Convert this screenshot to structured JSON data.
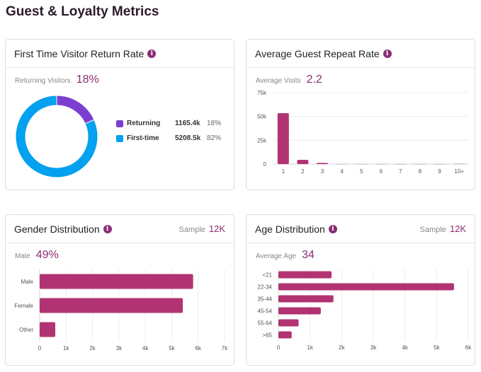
{
  "page": {
    "title": "Guest & Loyalty Metrics"
  },
  "colors": {
    "accent": "#8a2d75",
    "bar": "#b23371",
    "returning": "#7b3fd0",
    "first_time": "#03a1ef"
  },
  "cards": {
    "return_rate": {
      "title": "First Time Visitor Return Rate",
      "kpi_label": "Returning Visitors",
      "kpi_value": "18%",
      "legend": [
        {
          "name": "Returning",
          "value": "1165.4k",
          "pct": "18%"
        },
        {
          "name": "First-time",
          "value": "5208.5k",
          "pct": "82%"
        }
      ]
    },
    "repeat_rate": {
      "title": "Average Guest Repeat Rate",
      "kpi_label": "Average Visits",
      "kpi_value": "2.2"
    },
    "gender": {
      "title": "Gender Distribution",
      "sample_label": "Sample",
      "sample_value": "12K",
      "kpi_label": "Male",
      "kpi_value": "49%"
    },
    "age": {
      "title": "Age Distribution",
      "sample_label": "Sample",
      "sample_value": "12K",
      "kpi_label": "Average Age",
      "kpi_value": "34"
    }
  },
  "chart_data": [
    {
      "id": "return_rate",
      "type": "pie",
      "donut": true,
      "categories": [
        "Returning",
        "First-time"
      ],
      "values": [
        1165.4,
        5208.5
      ],
      "unit": "k",
      "percentages": [
        18,
        82
      ]
    },
    {
      "id": "repeat_rate",
      "type": "bar",
      "categories": [
        "1",
        "2",
        "3",
        "4",
        "5",
        "6",
        "7",
        "8",
        "9",
        "10+"
      ],
      "values": [
        53500,
        4500,
        1200,
        300,
        300,
        300,
        100,
        100,
        100,
        800
      ],
      "yticks": [
        "0",
        "25k",
        "50k",
        "75k"
      ],
      "ylim": [
        0,
        75000
      ],
      "grid": true
    },
    {
      "id": "gender",
      "type": "bar",
      "orientation": "horizontal",
      "categories": [
        "Male",
        "Female",
        "Other"
      ],
      "values": [
        5810,
        5420,
        590
      ],
      "xticks": [
        "0",
        "1k",
        "2k",
        "3k",
        "4k",
        "5k",
        "6k",
        "7k"
      ],
      "xlim": [
        0,
        7000
      ],
      "grid": true
    },
    {
      "id": "age",
      "type": "bar",
      "orientation": "horizontal",
      "categories": [
        "<21",
        "22-34",
        "35-44",
        "45-54",
        "55-64",
        ">65"
      ],
      "values": [
        1680,
        5550,
        1740,
        1340,
        640,
        420
      ],
      "xticks": [
        "0",
        "1k",
        "2k",
        "3k",
        "4k",
        "5k",
        "6k"
      ],
      "xlim": [
        0,
        6000
      ],
      "grid": true
    }
  ]
}
